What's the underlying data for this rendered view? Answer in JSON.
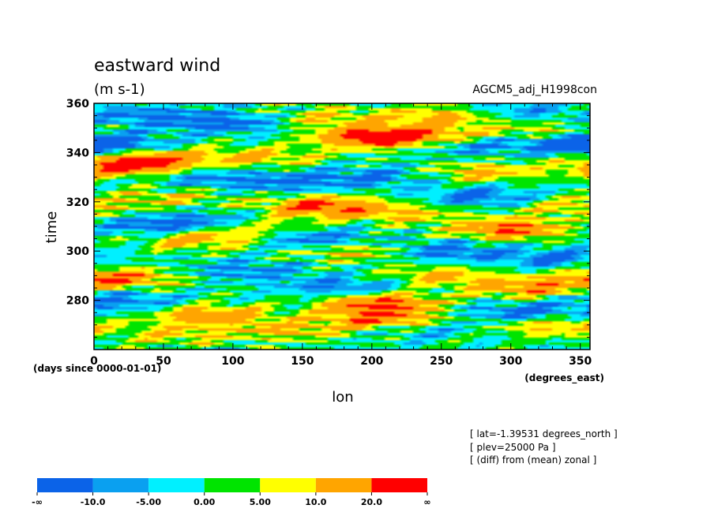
{
  "chart_data": {
    "type": "heatmap",
    "title": "eastward wind",
    "units": "(m s-1)",
    "dataset": "AGCM5_adj_H1998con",
    "xlabel": "lon",
    "xunits": "(degrees_east)",
    "ylabel": "time",
    "yunits": "(days since 0000-01-01)",
    "xlim": [
      0,
      357
    ],
    "ylim": [
      260,
      360
    ],
    "xticks": [
      "0",
      "50",
      "100",
      "150",
      "200",
      "250",
      "300",
      "350"
    ],
    "xtick_values": [
      0,
      50,
      100,
      150,
      200,
      250,
      300,
      350
    ],
    "yticks": [
      "280",
      "300",
      "320",
      "340",
      "360"
    ],
    "ytick_values": [
      280,
      300,
      320,
      340,
      360
    ],
    "info": [
      "[ lat=-1.39531 degrees_north ]",
      "[ plev=25000 Pa ]",
      "[ (diff) from (mean) zonal ]"
    ],
    "colorbar": {
      "bins": [
        "#0b63e8",
        "#0aa0f0",
        "#00f0ff",
        "#00e400",
        "#ffff00",
        "#ffa500",
        "#ff0000"
      ],
      "labels": [
        "-∞",
        "-10.0",
        "-5.00",
        "0.00",
        "5.00",
        "10.0",
        "20.0",
        "∞"
      ],
      "thresholds": [
        -10,
        -5,
        0,
        5,
        10,
        20
      ]
    },
    "features": [
      {
        "lon": 210,
        "time": 272,
        "value": 22
      },
      {
        "lon": 205,
        "time": 279,
        "value": 22
      },
      {
        "lon": 165,
        "time": 318,
        "value": 22
      },
      {
        "lon": 200,
        "time": 346,
        "value": 21
      },
      {
        "lon": 25,
        "time": 334,
        "value": 21
      },
      {
        "lon": 40,
        "time": 338,
        "value": 16
      },
      {
        "lon": 300,
        "time": 309,
        "value": 21
      },
      {
        "lon": 15,
        "time": 289,
        "value": 20
      },
      {
        "lon": 85,
        "time": 274,
        "value": 15
      },
      {
        "lon": 310,
        "time": 285,
        "value": 16
      },
      {
        "lon": 235,
        "time": 347,
        "value": 15
      },
      {
        "lon": 255,
        "time": 355,
        "value": 13
      },
      {
        "lon": 75,
        "time": 305,
        "value": 14
      },
      {
        "lon": 115,
        "time": 310,
        "value": 12
      },
      {
        "lon": 190,
        "time": 300,
        "value": 12
      },
      {
        "lon": 280,
        "time": 332,
        "value": 12
      },
      {
        "lon": 330,
        "time": 270,
        "value": 13
      },
      {
        "lon": 140,
        "time": 268,
        "value": 11
      },
      {
        "lon": 250,
        "time": 290,
        "value": 11
      },
      {
        "lon": 345,
        "time": 318,
        "value": 11
      },
      {
        "lon": 120,
        "time": 338,
        "value": 11
      },
      {
        "lon": 170,
        "time": 354,
        "value": 10
      },
      {
        "lon": 55,
        "time": 322,
        "value": 9
      },
      {
        "lon": 320,
        "time": 348,
        "value": 10
      },
      {
        "lon": 225,
        "time": 315,
        "value": 9
      },
      {
        "lon": 60,
        "time": 266,
        "value": 9
      },
      {
        "lon": 10,
        "time": 343,
        "value": -14
      },
      {
        "lon": 345,
        "time": 344,
        "value": -14
      },
      {
        "lon": 310,
        "time": 275,
        "value": -14
      },
      {
        "lon": 160,
        "time": 305,
        "value": -13
      },
      {
        "lon": 250,
        "time": 300,
        "value": -13
      },
      {
        "lon": 95,
        "time": 352,
        "value": -13
      },
      {
        "lon": 90,
        "time": 312,
        "value": -12
      },
      {
        "lon": 40,
        "time": 310,
        "value": -12
      },
      {
        "lon": 180,
        "time": 285,
        "value": -12
      },
      {
        "lon": 280,
        "time": 322,
        "value": -12
      },
      {
        "lon": 200,
        "time": 330,
        "value": -11
      },
      {
        "lon": 135,
        "time": 328,
        "value": -11
      },
      {
        "lon": 20,
        "time": 280,
        "value": -11
      },
      {
        "lon": 330,
        "time": 297,
        "value": -11
      },
      {
        "lon": 110,
        "time": 292,
        "value": -10
      },
      {
        "lon": 270,
        "time": 343,
        "value": -10
      },
      {
        "lon": 230,
        "time": 269,
        "value": -10
      },
      {
        "lon": 35,
        "time": 355,
        "value": -10
      },
      {
        "lon": 300,
        "time": 357,
        "value": -9
      },
      {
        "lon": 70,
        "time": 330,
        "value": -9
      }
    ]
  }
}
